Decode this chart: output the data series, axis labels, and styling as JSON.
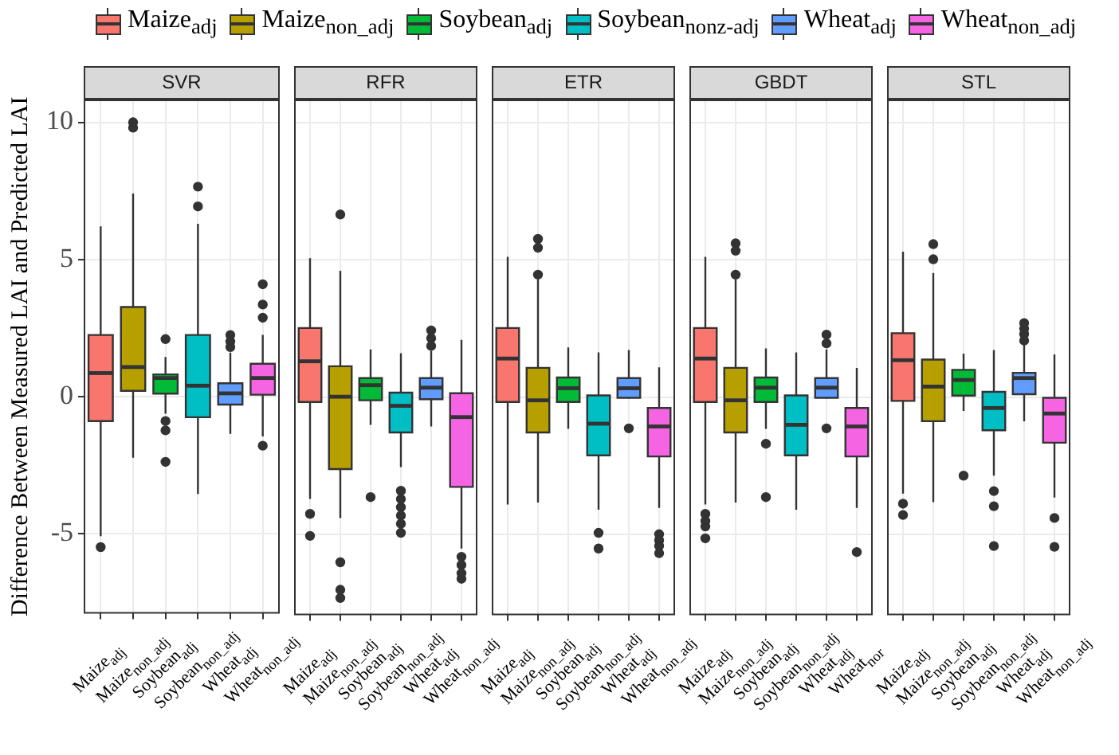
{
  "chart_data": [
    {
      "type": "box",
      "title": "SVR",
      "ylabel": "Difference Between Measured LAI and Predicted LAI",
      "categories": [
        "Maize$_{adj}$",
        "Maize$_{non_adj}$",
        "Soybean$_{adj}$",
        "Soybean$_{non_adj}$",
        "Wheat$_{adj}$",
        "Wheat$_{non_adj}$"
      ],
      "ylim": [
        -7.9,
        10.8
      ],
      "yticks": [
        -5,
        0,
        5,
        10
      ],
      "grid": true,
      "legend": "top",
      "series": [
        {
          "name": "Maize$_{adj}$",
          "color": "#f8766d",
          "x": [
            "Maize$_{adj}$"
          ],
          "boxes": [
            {
              "low": -5.1,
              "q1": -0.9,
              "median": 0.85,
              "q3": 2.24,
              "high": 6.2,
              "outliers": [
                -5.5
              ]
            }
          ]
        },
        {
          "name": "Maize$_{non_adj}$",
          "color": "#b79f00",
          "x": [
            "Maize$_{non_adj}$"
          ],
          "boxes": [
            {
              "low": -2.24,
              "q1": 0.2,
              "median": 1.07,
              "q3": 3.26,
              "high": 7.4,
              "outliers": [
                9.8,
                10
              ]
            }
          ]
        },
        {
          "name": "Soybean$_{adj}$",
          "color": "#00ba38",
          "x": [
            "Soybean$_{adj}$"
          ],
          "boxes": [
            {
              "low": -0.63,
              "q1": 0.1,
              "median": 0.67,
              "q3": 0.8,
              "high": 1.44,
              "outliers": [
                2.09,
                -0.9,
                -1.24,
                -2.39
              ]
            }
          ]
        },
        {
          "name": "Soybean$_{nonz-adj}$",
          "color": "#00bfc4",
          "x": [
            "Soybean$_{non_adj}$"
          ],
          "boxes": [
            {
              "low": -3.56,
              "q1": -0.76,
              "median": 0.39,
              "q3": 2.24,
              "high": 6.3,
              "outliers": [
                7.65,
                6.93
              ]
            }
          ]
        },
        {
          "name": "Wheat$_{adj}$",
          "color": "#619cff",
          "x": [
            "Wheat$_{adj}$"
          ],
          "boxes": [
            {
              "low": -1.37,
              "q1": -0.3,
              "median": 0.11,
              "q3": 0.48,
              "high": 1.6,
              "outliers": [
                1.8,
                2.0,
                2.24
              ]
            }
          ]
        },
        {
          "name": "Wheat$_{non_adj}$",
          "color": "#f564e3",
          "x": [
            "Wheat$_{non_adj}$"
          ],
          "boxes": [
            {
              "low": -1.46,
              "q1": 0.06,
              "median": 0.67,
              "q3": 1.19,
              "high": 2.24,
              "outliers": [
                4.09,
                3.35,
                2.87,
                -1.8
              ]
            }
          ]
        }
      ]
    },
    {
      "type": "box",
      "title": "RFR",
      "categories": [
        "Maize$_{adj}$",
        "Maize$_{non_adj}$",
        "Soybean$_{adj}$",
        "Soybean$_{non_adj}$",
        "Wheat$_{adj}$",
        "Wheat$_{non_adj}$"
      ],
      "ylim": [
        -7.9,
        10.8
      ],
      "yticks": [
        -5,
        0,
        5,
        10
      ],
      "grid": true,
      "tick_labels": "x",
      "series": [
        {
          "color": "#f8766d",
          "x": [
            "Maize$_{adj}$"
          ],
          "boxes": [
            {
              "low": -3.7,
              "q1": -0.17,
              "median": 1.31,
              "q3": 2.52,
              "high": 5.06,
              "outliers": [
                -4.24,
                -5.04
              ]
            }
          ]
        },
        {
          "color": "#b79f00",
          "x": [
            "Maize$_{non_adj}$"
          ],
          "boxes": [
            {
              "low": -4.39,
              "q1": -2.61,
              "median": 0.02,
              "q3": 1.13,
              "high": 4.6,
              "outliers": [
                6.65,
                -6.0,
                -7.0,
                -7.3
              ]
            }
          ]
        },
        {
          "color": "#00ba38",
          "x": [
            "Soybean$_{adj}$"
          ],
          "boxes": [
            {
              "low": -1.0,
              "q1": -0.11,
              "median": 0.44,
              "q3": 0.7,
              "high": 1.74,
              "outliers": [
                -3.63
              ]
            }
          ]
        },
        {
          "color": "#00bfc4",
          "x": [
            "Soybean$_{non_adj}$"
          ],
          "boxes": [
            {
              "low": -2.54,
              "q1": -1.28,
              "median": -0.31,
              "q3": 0.17,
              "high": 1.6,
              "outliers": [
                -3.4,
                -3.7,
                -4.0,
                -4.3,
                -4.6,
                -4.93
              ]
            }
          ]
        },
        {
          "color": "#619cff",
          "x": [
            "Wheat$_{adj}$"
          ],
          "boxes": [
            {
              "low": -1.06,
              "q1": -0.07,
              "median": 0.35,
              "q3": 0.7,
              "high": 1.69,
              "outliers": [
                1.87,
                2.15,
                2.43
              ]
            }
          ]
        },
        {
          "color": "#f564e3",
          "x": [
            "Wheat$_{non_adj}$"
          ],
          "boxes": [
            {
              "low": -5.5,
              "q1": -3.26,
              "median": -0.72,
              "q3": 0.15,
              "high": 2.09,
              "outliers": [
                -5.8,
                -6.1,
                -6.4,
                -6.6
              ]
            }
          ]
        }
      ]
    },
    {
      "type": "box",
      "title": "ETR",
      "categories": [
        "Maize$_{adj}$",
        "Maize$_{non_adj}$",
        "Soybean$_{adj}$",
        "Soybean$_{non_adj}$",
        "Wheat$_{adj}$",
        "Wheat$_{non_adj}$"
      ],
      "ylim": [
        -7.9,
        10.8
      ],
      "yticks": [
        -5,
        0,
        5,
        10
      ],
      "grid": true,
      "tick_labels": "x",
      "series": [
        {
          "color": "#f8766d",
          "x": [
            "Maize$_{adj}$"
          ],
          "boxes": [
            {
              "low": -3.9,
              "q1": -0.17,
              "median": 1.41,
              "q3": 2.52,
              "high": 5.11
            }
          ]
        },
        {
          "color": "#b79f00",
          "x": [
            "Maize$_{non_adj}$"
          ],
          "boxes": [
            {
              "low": -3.83,
              "q1": -1.28,
              "median": -0.11,
              "q3": 1.07,
              "high": 4.28,
              "outliers": [
                4.46,
                5.44,
                5.76
              ]
            }
          ]
        },
        {
          "color": "#00ba38",
          "x": [
            "Soybean$_{adj}$"
          ],
          "boxes": [
            {
              "low": -1.15,
              "q1": -0.17,
              "median": 0.33,
              "q3": 0.72,
              "high": 1.81
            }
          ]
        },
        {
          "color": "#00bfc4",
          "x": [
            "Soybean$_{non_adj}$"
          ],
          "boxes": [
            {
              "low": -4.09,
              "q1": -2.11,
              "median": -0.96,
              "q3": 0.07,
              "high": 1.63,
              "outliers": [
                -4.93,
                -5.5
              ]
            }
          ]
        },
        {
          "color": "#619cff",
          "x": [
            "Wheat$_{adj}$"
          ],
          "boxes": [
            {
              "low": -0.05,
              "q1": -0.02,
              "median": 0.33,
              "q3": 0.7,
              "high": 1.72,
              "outliers": [
                -1.13
              ]
            }
          ]
        },
        {
          "color": "#f564e3",
          "x": [
            "Wheat$_{non_adj}$"
          ],
          "boxes": [
            {
              "low": -4.02,
              "q1": -2.15,
              "median": -1.06,
              "q3": -0.39,
              "high": 1.09,
              "outliers": [
                -4.98,
                -5.2,
                -5.4,
                -5.67
              ]
            }
          ]
        }
      ]
    },
    {
      "type": "box",
      "title": "GBDT",
      "categories": [
        "Maize$_{adj}$",
        "Maize$_{non_adj}$",
        "Soybean$_{adj}$",
        "Soybean$_{non_adj}$",
        "Wheat$_{adj}$",
        "Wheat$_{nor}$"
      ],
      "ylim": [
        -7.9,
        10.8
      ],
      "yticks": [
        -5,
        0,
        5,
        10
      ],
      "grid": true,
      "tick_labels": "x",
      "series": [
        {
          "color": "#f8766d",
          "x": [
            "Maize$_{adj}$"
          ],
          "boxes": [
            {
              "low": -3.9,
              "q1": -0.17,
              "median": 1.41,
              "q3": 2.52,
              "high": 5.11,
              "outliers": [
                -4.24,
                -4.5,
                -4.7,
                -5.13
              ]
            }
          ]
        },
        {
          "color": "#b79f00",
          "x": [
            "Maize$_{non_adj}$"
          ],
          "boxes": [
            {
              "low": -3.83,
              "q1": -1.28,
              "median": -0.11,
              "q3": 1.07,
              "high": 4.28,
              "outliers": [
                4.46,
                5.33,
                5.6
              ]
            }
          ]
        },
        {
          "color": "#00ba38",
          "x": [
            "Soybean$_{adj}$"
          ],
          "boxes": [
            {
              "low": -1.15,
              "q1": -0.17,
              "median": 0.35,
              "q3": 0.72,
              "high": 1.78,
              "outliers": [
                -1.69,
                -3.63
              ]
            }
          ]
        },
        {
          "color": "#00bfc4",
          "x": [
            "Soybean$_{non_adj}$"
          ],
          "boxes": [
            {
              "low": -4.09,
              "q1": -2.11,
              "median": -1.0,
              "q3": 0.07,
              "high": 1.63
            }
          ]
        },
        {
          "color": "#619cff",
          "x": [
            "Wheat$_{adj}$"
          ],
          "boxes": [
            {
              "low": -0.05,
              "q1": -0.02,
              "median": 0.35,
              "q3": 0.7,
              "high": 1.74,
              "outliers": [
                1.96,
                2.28,
                -1.13
              ]
            }
          ]
        },
        {
          "color": "#f564e3",
          "x": [
            "Wheat$_{nor}$"
          ],
          "boxes": [
            {
              "low": -4.02,
              "q1": -2.15,
              "median": -1.06,
              "q3": -0.39,
              "high": 1.07,
              "outliers": [
                -5.63
              ]
            }
          ]
        }
      ]
    },
    {
      "type": "box",
      "title": "STL",
      "categories": [
        "Maize$_{adj}$",
        "Maize$_{non_adj}$",
        "Soybean$_{adj}$",
        "Soybean$_{non_adj}$",
        "Wheat$_{adj}$",
        "Wheat$_{non_adj}$"
      ],
      "ylim": [
        -7.9,
        10.8
      ],
      "yticks": [
        -5,
        0,
        5,
        10
      ],
      "grid": true,
      "tick_labels": "x",
      "series": [
        {
          "color": "#f8766d",
          "x": [
            "Maize$_{adj}$"
          ],
          "boxes": [
            {
              "low": -3.5,
              "q1": -0.13,
              "median": 1.35,
              "q3": 2.33,
              "high": 5.3,
              "outliers": [
                -3.87,
                -4.28
              ]
            }
          ]
        },
        {
          "color": "#b79f00",
          "x": [
            "Maize$_{non_adj}$"
          ],
          "boxes": [
            {
              "low": -3.81,
              "q1": -0.87,
              "median": 0.39,
              "q3": 1.37,
              "high": 4.52,
              "outliers": [
                5.02,
                5.57
              ]
            }
          ]
        },
        {
          "color": "#00ba38",
          "x": [
            "Soybean$_{adj}$"
          ],
          "boxes": [
            {
              "low": -0.5,
              "q1": 0.06,
              "median": 0.63,
              "q3": 1.0,
              "high": 1.59,
              "outliers": [
                -2.85
              ]
            }
          ]
        },
        {
          "color": "#00bfc4",
          "x": [
            "Soybean$_{non_adj}$"
          ],
          "boxes": [
            {
              "low": -2.85,
              "q1": -1.2,
              "median": -0.39,
              "q3": 0.2,
              "high": 1.72,
              "outliers": [
                -3.41,
                -3.96,
                -5.41
              ]
            }
          ]
        },
        {
          "color": "#619cff",
          "x": [
            "Wheat$_{adj}$"
          ],
          "boxes": [
            {
              "low": -0.87,
              "q1": 0.11,
              "median": 0.7,
              "q3": 0.89,
              "high": 1.96,
              "outliers": [
                2.06,
                2.3,
                2.5,
                2.7
              ]
            }
          ]
        },
        {
          "color": "#f564e3",
          "x": [
            "Wheat$_{non_adj}$"
          ],
          "boxes": [
            {
              "low": -3.65,
              "q1": -1.65,
              "median": -0.59,
              "q3": -0.02,
              "high": 1.56,
              "outliers": [
                -4.39,
                -5.44
              ]
            }
          ]
        }
      ]
    }
  ]
}
